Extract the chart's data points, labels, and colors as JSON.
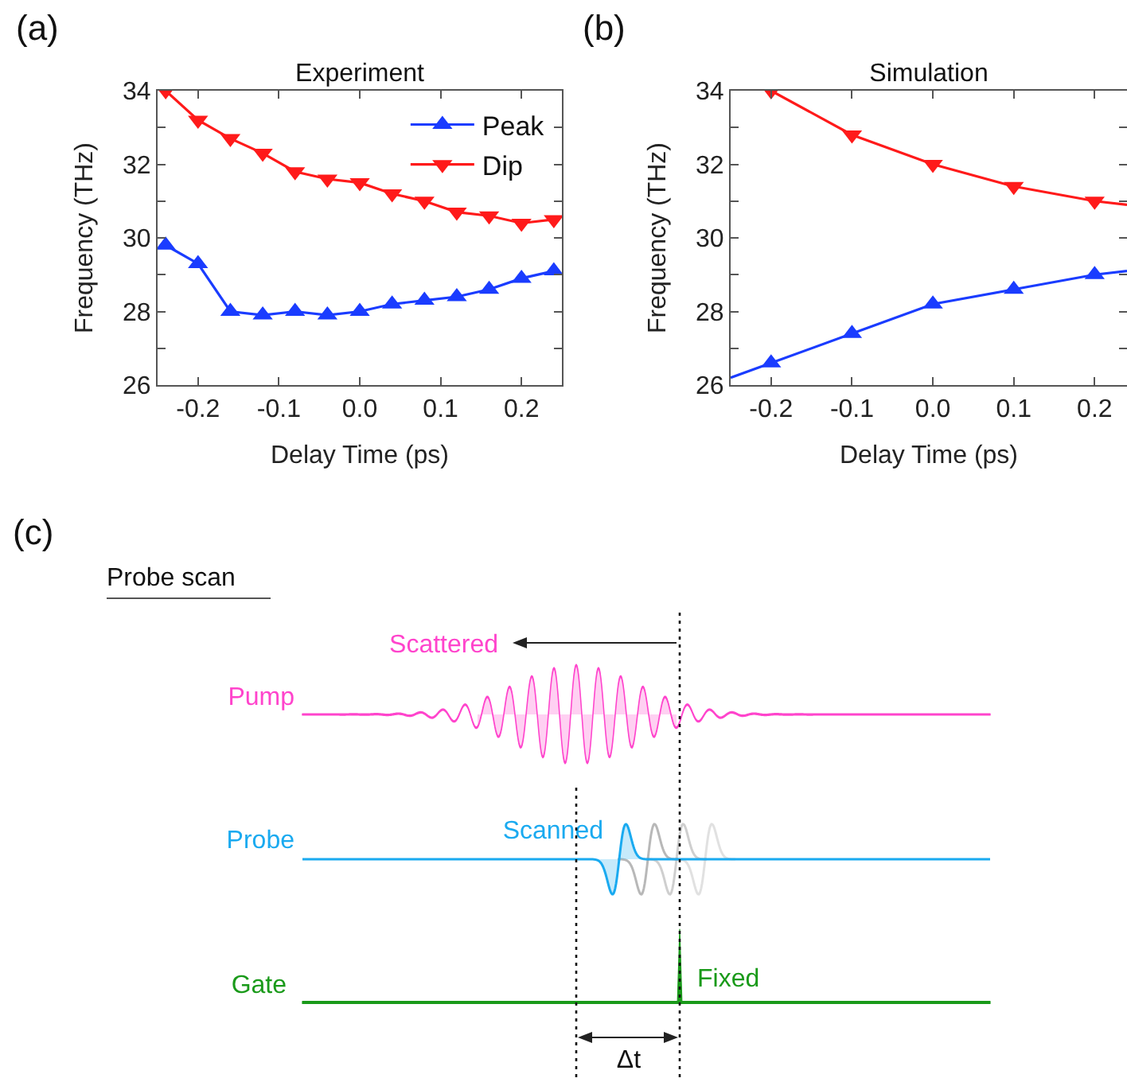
{
  "chart_data": [
    {
      "type": "line",
      "title": "Experiment",
      "xlabel": "Delay Time (ps)",
      "ylabel": "Frequency (THz)",
      "annotations": [
        "(a)"
      ],
      "x": [
        -0.24,
        -0.2,
        -0.16,
        -0.12,
        -0.08,
        -0.04,
        0,
        0.04,
        0.08,
        0.12,
        0.16,
        0.2,
        0.24
      ],
      "series": [
        {
          "name": "Peak",
          "color": "#1a3cff",
          "marker": "triangle",
          "values": [
            29.8,
            29.3,
            28.0,
            27.9,
            28.0,
            27.9,
            28.0,
            28.2,
            28.3,
            28.4,
            28.6,
            28.9,
            29.1
          ]
        },
        {
          "name": "Dip",
          "color": "#ff1a1a",
          "marker": "triangle-down",
          "values": [
            34.0,
            33.2,
            32.7,
            32.3,
            31.8,
            31.6,
            31.5,
            31.2,
            31.0,
            30.7,
            30.6,
            30.4,
            30.5
          ]
        }
      ],
      "xlim": [
        -0.25,
        0.25
      ],
      "xticks": [
        -0.2,
        -0.1,
        {
          "value": 0,
          "label": "0.0"
        },
        0.1,
        0.2
      ],
      "ylim": [
        26,
        34
      ],
      "yticks": [
        26,
        {
          "value": 27,
          "label": null
        },
        28,
        {
          "value": 29,
          "label": null
        },
        30,
        {
          "value": 31,
          "label": null
        },
        32,
        {
          "value": 33,
          "label": null
        },
        34
      ],
      "grid": false,
      "legend": "top right"
    },
    {
      "type": "line",
      "title": "Simulation",
      "xlabel": "Delay Time (ps)",
      "ylabel": "Frequency (THz)",
      "annotations": [
        "(b)"
      ],
      "series": [
        {
          "color": "#1a3cff",
          "marker": "none",
          "x": [
            -0.25,
            -0.2,
            -0.1,
            0,
            0.1,
            0.2,
            0.24
          ],
          "values": [
            26.2,
            26.6,
            27.4,
            28.2,
            28.6,
            29.0,
            29.1
          ]
        },
        {
          "type": "scatter",
          "color": "#1a3cff",
          "marker": "triangle",
          "x": [
            -0.2,
            -0.1,
            0,
            0.1,
            0.2
          ],
          "values": [
            26.6,
            27.4,
            28.2,
            28.6,
            29.0
          ]
        },
        {
          "color": "#ff1a1a",
          "marker": "none",
          "x": [
            -0.2,
            -0.1,
            0,
            0.1,
            0.2,
            0.24
          ],
          "values": [
            34.0,
            32.8,
            32.0,
            31.4,
            31.0,
            30.9
          ]
        },
        {
          "type": "scatter",
          "color": "#ff1a1a",
          "marker": "triangle-down",
          "x": [
            -0.2,
            -0.1,
            0,
            0.1,
            0.2
          ],
          "values": [
            34.0,
            32.8,
            32.0,
            31.4,
            31.0
          ]
        }
      ],
      "xlim": [
        -0.25,
        0.24
      ],
      "xticks": [
        -0.2,
        -0.1,
        {
          "value": 0,
          "label": "0.0"
        },
        0.1,
        0.2
      ],
      "ylim": [
        26,
        34
      ],
      "yticks": [
        26,
        {
          "value": 27,
          "label": null
        },
        28,
        {
          "value": 29,
          "label": null
        },
        30,
        {
          "value": 31,
          "label": null
        },
        32,
        {
          "value": 33,
          "label": null
        },
        34
      ],
      "grid": false,
      "legend": false
    },
    {
      "type": "other",
      "title": "Probe scan",
      "annotations": [
        "(c)",
        "Scattered",
        "Pump",
        "Probe",
        "Scanned",
        "Gate",
        "Fixed",
        "Δt"
      ]
    }
  ]
}
